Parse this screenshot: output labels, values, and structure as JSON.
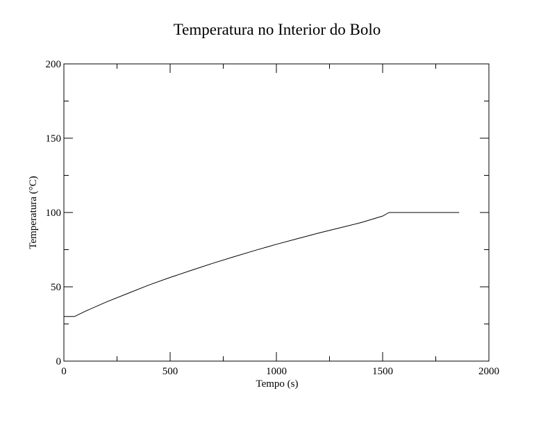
{
  "chart_data": {
    "type": "line",
    "title": "Temperatura no Interior do Bolo",
    "xlabel": "Tempo (s)",
    "ylabel": "Temperatura (°C)",
    "xlim": [
      0,
      2000
    ],
    "ylim": [
      0,
      200
    ],
    "x_ticks": [
      0,
      500,
      1000,
      1500,
      2000
    ],
    "y_ticks": [
      0,
      50,
      100,
      150,
      200
    ],
    "grid": false,
    "legend": "none",
    "series": [
      {
        "x": [
          0,
          50,
          100,
          200,
          300,
          400,
          500,
          600,
          700,
          800,
          900,
          1000,
          1100,
          1200,
          1300,
          1400,
          1500,
          1530,
          1600,
          1700,
          1860
        ],
        "y": [
          30,
          30,
          33.5,
          39.8,
          45.5,
          51.2,
          56.3,
          61.1,
          65.8,
          70.2,
          74.5,
          78.6,
          82.4,
          86.2,
          89.7,
          93.3,
          97.6,
          100,
          100,
          100,
          100
        ],
        "color": "#000000"
      }
    ]
  }
}
